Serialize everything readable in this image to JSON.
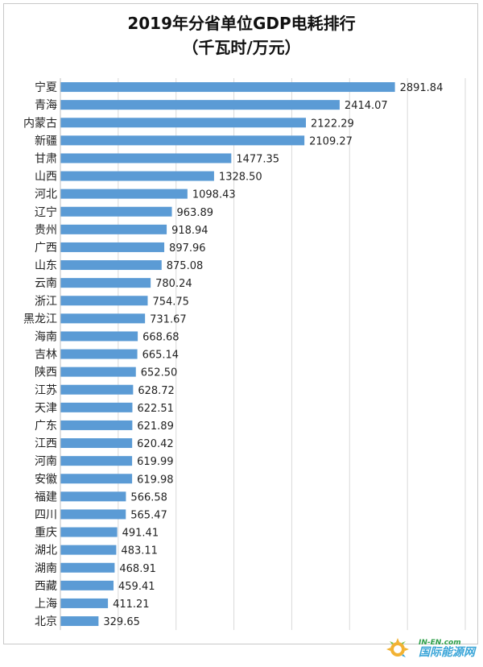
{
  "chart_data": {
    "type": "bar",
    "orientation": "horizontal",
    "title": "2019年分省单位GDP电耗排行",
    "subtitle": "（千瓦时/万元）",
    "categories": [
      "宁夏",
      "青海",
      "内蒙古",
      "新疆",
      "甘肃",
      "山西",
      "河北",
      "辽宁",
      "贵州",
      "广西",
      "山东",
      "云南",
      "浙江",
      "黑龙江",
      "海南",
      "吉林",
      "陕西",
      "江苏",
      "天津",
      "广东",
      "江西",
      "河南",
      "安徽",
      "福建",
      "四川",
      "重庆",
      "湖北",
      "湖南",
      "西藏",
      "上海",
      "北京"
    ],
    "values": [
      2891.84,
      2414.07,
      2122.29,
      2109.27,
      1477.35,
      1328.5,
      1098.43,
      963.89,
      918.94,
      897.96,
      875.08,
      780.24,
      754.75,
      731.67,
      668.68,
      665.14,
      652.5,
      628.72,
      622.51,
      621.89,
      620.42,
      619.99,
      619.98,
      566.58,
      565.47,
      491.41,
      483.11,
      468.91,
      459.41,
      411.21,
      329.65
    ],
    "value_labels": [
      "2891.84",
      "2414.07",
      "2122.29",
      "2109.27",
      "1477.35",
      "1328.50",
      "1098.43",
      "963.89",
      "918.94",
      "897.96",
      "875.08",
      "780.24",
      "754.75",
      "731.67",
      "668.68",
      "665.14",
      "652.50",
      "628.72",
      "622.51",
      "621.89",
      "620.42",
      "619.99",
      "619.98",
      "566.58",
      "565.47",
      "491.41",
      "483.11",
      "468.91",
      "459.41",
      "411.21",
      "329.65"
    ],
    "xlim": [
      0,
      3500
    ],
    "grid": true,
    "bar_color": "#5b9bd5"
  },
  "watermark": {
    "en": "IN-EN.com",
    "cn": "国际能源网"
  }
}
